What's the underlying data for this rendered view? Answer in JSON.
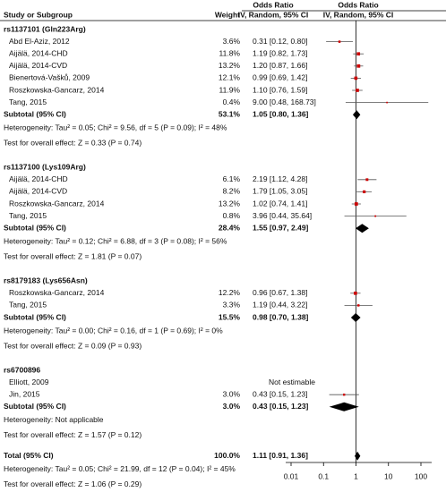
{
  "chart_data": {
    "type": "forest",
    "header": {
      "study": "Study or Subgroup",
      "weight": "Weight",
      "or_title": "Odds Ratio",
      "or_method": "IV, Random, 95% CI",
      "plot_title": "Odds Ratio",
      "plot_method": "IV, Random, 95% CI"
    },
    "groups": [
      {
        "title": "rs1137101 (Gln223Arg)",
        "studies": [
          {
            "name": "Abd El-Aziz, 2012",
            "weight": {
              "value": 3.6,
              "label": "3.6%"
            },
            "or": {
              "value": 0.31,
              "label": "0.31 [0.12, 0.80]"
            },
            "lo": 0.12,
            "hi": 0.8
          },
          {
            "name": "Aijälä, 2014-CHD",
            "weight": {
              "value": 11.8,
              "label": "11.8%"
            },
            "or": {
              "value": 1.19,
              "label": "1.19 [0.82, 1.73]"
            },
            "lo": 0.82,
            "hi": 1.73
          },
          {
            "name": "Aijälä, 2014-CVD",
            "weight": {
              "value": 13.2,
              "label": "13.2%"
            },
            "or": {
              "value": 1.2,
              "label": "1.20 [0.87, 1.66]"
            },
            "lo": 0.87,
            "hi": 1.66
          },
          {
            "name": "Bienertová-Vašků, 2009",
            "weight": {
              "value": 12.1,
              "label": "12.1%"
            },
            "or": {
              "value": 0.99,
              "label": "0.99 [0.69, 1.42]"
            },
            "lo": 0.69,
            "hi": 1.42
          },
          {
            "name": "Roszkowska-Gancarz, 2014",
            "weight": {
              "value": 11.9,
              "label": "11.9%"
            },
            "or": {
              "value": 1.1,
              "label": "1.10 [0.76, 1.59]"
            },
            "lo": 0.76,
            "hi": 1.59
          },
          {
            "name": "Tang, 2015",
            "weight": {
              "value": 0.4,
              "label": "0.4%"
            },
            "or": {
              "value": 9,
              "label": "9.00 [0.48, 168.73]"
            },
            "lo": 0.48,
            "hi": 168.73
          }
        ],
        "subtotal": {
          "name": "Subtotal (95% CI)",
          "weight": {
            "value": 53.1,
            "label": "53.1%"
          },
          "or": {
            "value": 1.05,
            "label": "1.05 [0.80, 1.36]"
          },
          "lo": 0.8,
          "hi": 1.36
        },
        "heterogeneity": "Heterogeneity: Tau² = 0.05; Chi² = 9.56, df = 5 (P = 0.09); I² = 48%",
        "overall": "Test for overall effect: Z = 0.33 (P = 0.74)"
      },
      {
        "title": "rs1137100 (Lys109Arg)",
        "studies": [
          {
            "name": "Aijälä, 2014-CHD",
            "weight": {
              "value": 6.1,
              "label": "6.1%"
            },
            "or": {
              "value": 2.19,
              "label": "2.19 [1.12, 4.28]"
            },
            "lo": 1.12,
            "hi": 4.28
          },
          {
            "name": "Aijälä, 2014-CVD",
            "weight": {
              "value": 8.2,
              "label": "8.2%"
            },
            "or": {
              "value": 1.79,
              "label": "1.79 [1.05, 3.05]"
            },
            "lo": 1.05,
            "hi": 3.05
          },
          {
            "name": "Roszkowska-Gancarz, 2014",
            "weight": {
              "value": 13.2,
              "label": "13.2%"
            },
            "or": {
              "value": 1.02,
              "label": "1.02 [0.74, 1.41]"
            },
            "lo": 0.74,
            "hi": 1.41
          },
          {
            "name": "Tang, 2015",
            "weight": {
              "value": 0.8,
              "label": "0.8%"
            },
            "or": {
              "value": 3.96,
              "label": "3.96 [0.44, 35.64]"
            },
            "lo": 0.44,
            "hi": 35.64
          }
        ],
        "subtotal": {
          "name": "Subtotal (95% CI)",
          "weight": {
            "value": 28.4,
            "label": "28.4%"
          },
          "or": {
            "value": 1.55,
            "label": "1.55 [0.97, 2.49]"
          },
          "lo": 0.97,
          "hi": 2.49
        },
        "heterogeneity": "Heterogeneity: Tau² = 0.12; Chi² = 6.88, df = 3 (P = 0.08); I² = 56%",
        "overall": "Test for overall effect: Z = 1.81 (P = 0.07)"
      },
      {
        "title": "rs8179183 (Lys656Asn)",
        "studies": [
          {
            "name": "Roszkowska-Gancarz, 2014",
            "weight": {
              "value": 12.2,
              "label": "12.2%"
            },
            "or": {
              "value": 0.96,
              "label": "0.96 [0.67, 1.38]"
            },
            "lo": 0.67,
            "hi": 1.38
          },
          {
            "name": "Tang, 2015",
            "weight": {
              "value": 3.3,
              "label": "3.3%"
            },
            "or": {
              "value": 1.19,
              "label": "1.19 [0.44, 3.22]"
            },
            "lo": 0.44,
            "hi": 3.22
          }
        ],
        "subtotal": {
          "name": "Subtotal (95% CI)",
          "weight": {
            "value": 15.5,
            "label": "15.5%"
          },
          "or": {
            "value": 0.98,
            "label": "0.98 [0.70, 1.38]"
          },
          "lo": 0.7,
          "hi": 1.38
        },
        "heterogeneity": "Heterogeneity: Tau² = 0.00; Chi² = 0.16, df = 1 (P = 0.69); I² = 0%",
        "overall": "Test for overall effect: Z = 0.09 (P = 0.93)"
      },
      {
        "title": "rs6700896",
        "studies": [
          {
            "name": "Elliott, 2009",
            "estimate": "Not estimable"
          },
          {
            "name": "Jin, 2015",
            "weight": {
              "value": 3.0,
              "label": "3.0%"
            },
            "or": {
              "value": 0.43,
              "label": "0.43 [0.15, 1.23]"
            },
            "lo": 0.15,
            "hi": 1.23
          }
        ],
        "subtotal": {
          "name": "Subtotal (95% CI)",
          "weight": {
            "value": 3.0,
            "label": "3.0%"
          },
          "or": {
            "value": 0.43,
            "label": "0.43 [0.15, 1.23]"
          },
          "lo": 0.15,
          "hi": 1.23
        },
        "heterogeneity": "Heterogeneity: Not applicable",
        "overall": "Test for overall effect: Z = 1.57 (P = 0.12)"
      }
    ],
    "total": {
      "name": "Total (95% CI)",
      "weight": {
        "value": 100.0,
        "label": "100.0%"
      },
      "or": {
        "value": 1.11,
        "label": "1.11 [0.91, 1.36]"
      },
      "lo": 0.91,
      "hi": 1.36
    },
    "total_heterogeneity": "Heterogeneity: Tau² = 0.05; Chi² = 21.99, df = 12 (P = 0.04); I² = 45%",
    "total_overall": "Test for overall effect: Z = 1.06 (P = 0.29)",
    "xlim": [
      0.01,
      100
    ],
    "xticks": [
      0.01,
      0.1,
      1,
      10,
      100
    ],
    "log_scale": true,
    "square_color": "#cc0000",
    "ci_color": "#555555",
    "diamond_color": "#000000"
  }
}
